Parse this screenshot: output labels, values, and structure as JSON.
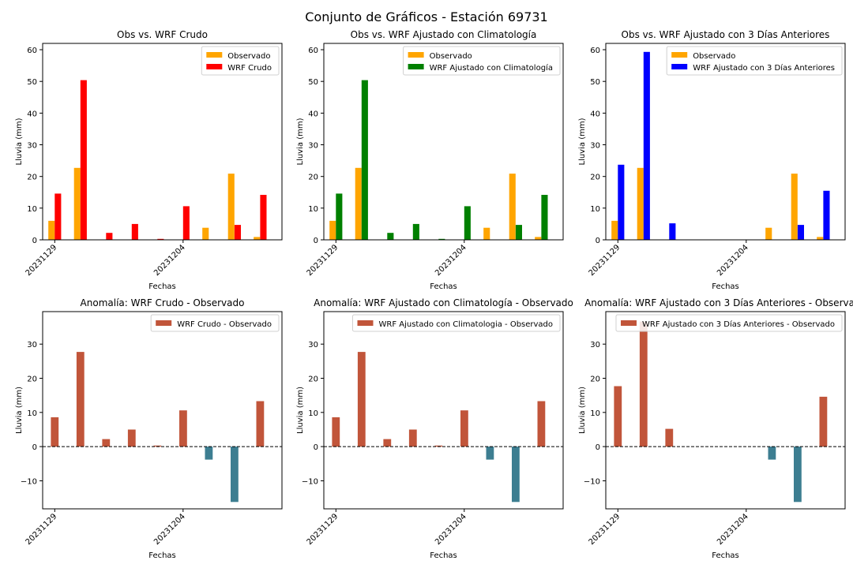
{
  "figure": {
    "suptitle": "Conjunto de Gráficos - Estación 69731"
  },
  "colors": {
    "observed": "#FFA500",
    "wrf_crudo": "#FF0000",
    "wrf_clima": "#008000",
    "wrf_3dias": "#0000FF",
    "anomaly_positive": "#C1553A",
    "anomaly_negative": "#3D7E91"
  },
  "chart_data": [
    {
      "type": "bar",
      "title": "Obs vs. WRF Crudo",
      "xlabel": "Fechas",
      "ylabel": "Lluvia (mm)",
      "ylim": [
        0,
        62
      ],
      "yticks": [
        0,
        10,
        20,
        30,
        40,
        50,
        60
      ],
      "xticks": [
        {
          "index": 0,
          "label": "20231129"
        },
        {
          "index": 5,
          "label": "20231204"
        }
      ],
      "legend": "upper right",
      "series": [
        {
          "name": "Observado",
          "values": [
            6.0,
            22.7,
            0,
            0,
            0,
            0,
            3.8,
            20.9,
            0.9
          ]
        },
        {
          "name": "WRF Crudo",
          "values": [
            14.6,
            50.4,
            2.2,
            5.0,
            0.3,
            10.6,
            0,
            4.7,
            14.2
          ]
        }
      ]
    },
    {
      "type": "bar",
      "title": "Obs vs. WRF Ajustado con Climatología",
      "xlabel": "Fechas",
      "ylabel": "Lluvia (mm)",
      "ylim": [
        0,
        62
      ],
      "yticks": [
        0,
        10,
        20,
        30,
        40,
        50,
        60
      ],
      "xticks": [
        {
          "index": 0,
          "label": "20231129"
        },
        {
          "index": 5,
          "label": "20231204"
        }
      ],
      "legend": "upper right",
      "series": [
        {
          "name": "Observado",
          "values": [
            6.0,
            22.7,
            0,
            0,
            0,
            0,
            3.8,
            20.9,
            0.9
          ]
        },
        {
          "name": "WRF Ajustado con Climatología",
          "values": [
            14.6,
            50.4,
            2.2,
            5.0,
            0.3,
            10.6,
            0,
            4.7,
            14.2
          ]
        }
      ]
    },
    {
      "type": "bar",
      "title": "Obs vs. WRF Ajustado con 3 Días Anteriores",
      "xlabel": "Fechas",
      "ylabel": "Lluvia (mm)",
      "ylim": [
        0,
        62
      ],
      "yticks": [
        0,
        10,
        20,
        30,
        40,
        50,
        60
      ],
      "xticks": [
        {
          "index": 0,
          "label": "20231129"
        },
        {
          "index": 5,
          "label": "20231204"
        }
      ],
      "legend": "upper right",
      "series": [
        {
          "name": "Observado",
          "values": [
            6.0,
            22.7,
            0,
            0,
            0,
            0,
            3.8,
            20.9,
            0.9
          ]
        },
        {
          "name": "WRF Ajustado con 3 Días Anteriores",
          "values": [
            23.7,
            59.3,
            5.2,
            0,
            0,
            0,
            0,
            4.7,
            15.5
          ]
        }
      ]
    },
    {
      "type": "bar",
      "title": "Anomalía: WRF Crudo - Observado",
      "xlabel": "Fechas",
      "ylabel": "Lluvia (mm)",
      "ylim": [
        -18.2,
        39.5
      ],
      "yticks": [
        -10,
        0,
        10,
        20,
        30
      ],
      "xticks": [
        {
          "index": 0,
          "label": "20231129"
        },
        {
          "index": 5,
          "label": "20231204"
        }
      ],
      "legend": "upper right",
      "zero_line": true,
      "series": [
        {
          "name": "WRF Crudo - Observado",
          "values": [
            8.6,
            27.7,
            2.2,
            5.0,
            0.3,
            10.6,
            -3.8,
            -16.2,
            13.3
          ]
        }
      ]
    },
    {
      "type": "bar",
      "title": "Anomalía: WRF Ajustado con Climatología - Observado",
      "xlabel": "Fechas",
      "ylabel": "Lluvia (mm)",
      "ylim": [
        -18.2,
        39.5
      ],
      "yticks": [
        -10,
        0,
        10,
        20,
        30
      ],
      "xticks": [
        {
          "index": 0,
          "label": "20231129"
        },
        {
          "index": 5,
          "label": "20231204"
        }
      ],
      "legend": "upper right",
      "zero_line": true,
      "series": [
        {
          "name": "WRF Ajustado con Climatologia - Observado",
          "values": [
            8.6,
            27.7,
            2.2,
            5.0,
            0.3,
            10.6,
            -3.8,
            -16.2,
            13.3
          ]
        }
      ]
    },
    {
      "type": "bar",
      "title": "Anomalía: WRF Ajustado con 3 Días Anteriores - Observado",
      "xlabel": "Fechas",
      "ylabel": "Lluvia (mm)",
      "ylim": [
        -18.2,
        39.5
      ],
      "yticks": [
        -10,
        0,
        10,
        20,
        30
      ],
      "xticks": [
        {
          "index": 0,
          "label": "20231129"
        },
        {
          "index": 5,
          "label": "20231204"
        }
      ],
      "legend": "upper right",
      "zero_line": true,
      "series": [
        {
          "name": "WRF Ajustado con 3 Días Anteriores - Observado",
          "values": [
            17.7,
            36.6,
            5.2,
            0,
            0,
            0,
            -3.8,
            -16.2,
            14.6
          ]
        }
      ]
    }
  ]
}
